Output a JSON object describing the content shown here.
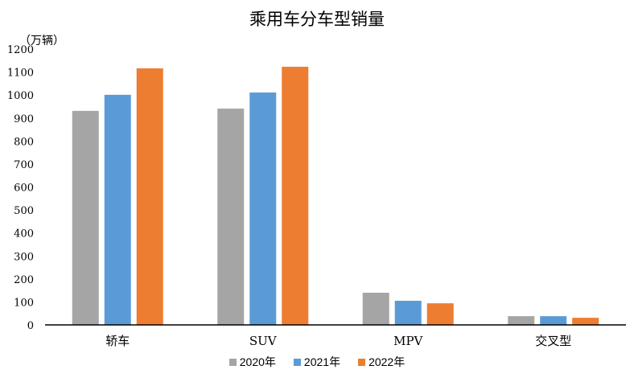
{
  "chart_data": {
    "type": "bar",
    "title": "乘用车分车型销量",
    "ylabel": "（万辆）",
    "xlabel": "",
    "categories": [
      "轿车",
      "SUV",
      "MPV",
      "交叉型"
    ],
    "series": [
      {
        "name": "2020年",
        "color": "#A5A5A5",
        "values": [
          931,
          941,
          140,
          38
        ]
      },
      {
        "name": "2021年",
        "color": "#5B9BD5",
        "values": [
          1001,
          1011,
          105,
          38
        ]
      },
      {
        "name": "2022年",
        "color": "#ED7D31",
        "values": [
          1116,
          1123,
          94,
          31
        ]
      }
    ],
    "ylim": [
      0,
      1200
    ],
    "yticks": [
      "0",
      "100",
      "200",
      "300",
      "400",
      "500",
      "600",
      "700",
      "800",
      "900",
      "1000",
      "1100",
      "1200"
    ],
    "grid": false,
    "legend": "bottom"
  }
}
